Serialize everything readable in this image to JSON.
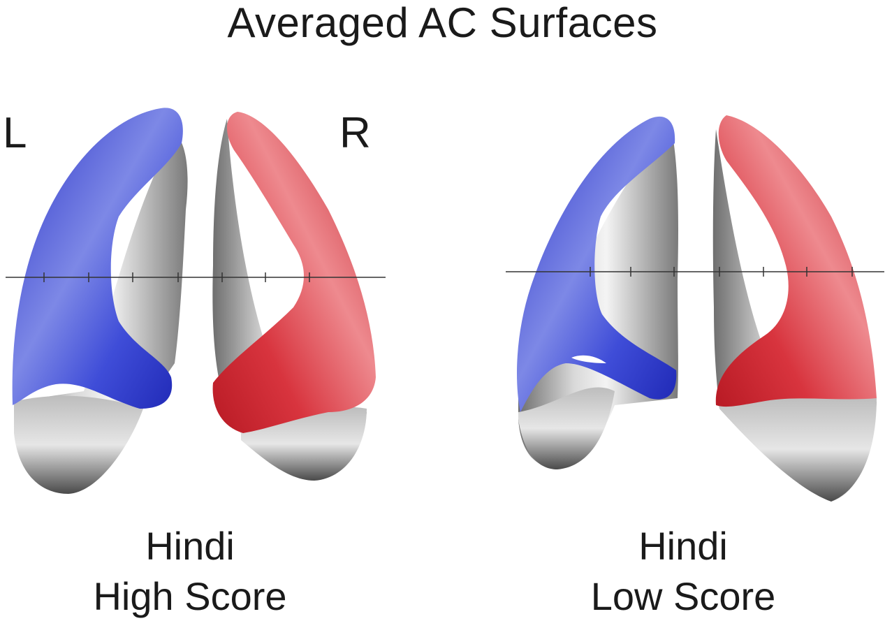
{
  "title": "Averaged AC Surfaces",
  "hemisphere_labels": {
    "left": "L",
    "right": "R"
  },
  "panels": [
    {
      "caption_line1": "Hindi",
      "caption_line2": "High Score"
    },
    {
      "caption_line1": "Hindi",
      "caption_line2": "Low Score"
    }
  ],
  "colors": {
    "left_hemisphere": "#2f3fd0",
    "right_hemisphere": "#d8323c",
    "surface": "#9a9a9a"
  }
}
